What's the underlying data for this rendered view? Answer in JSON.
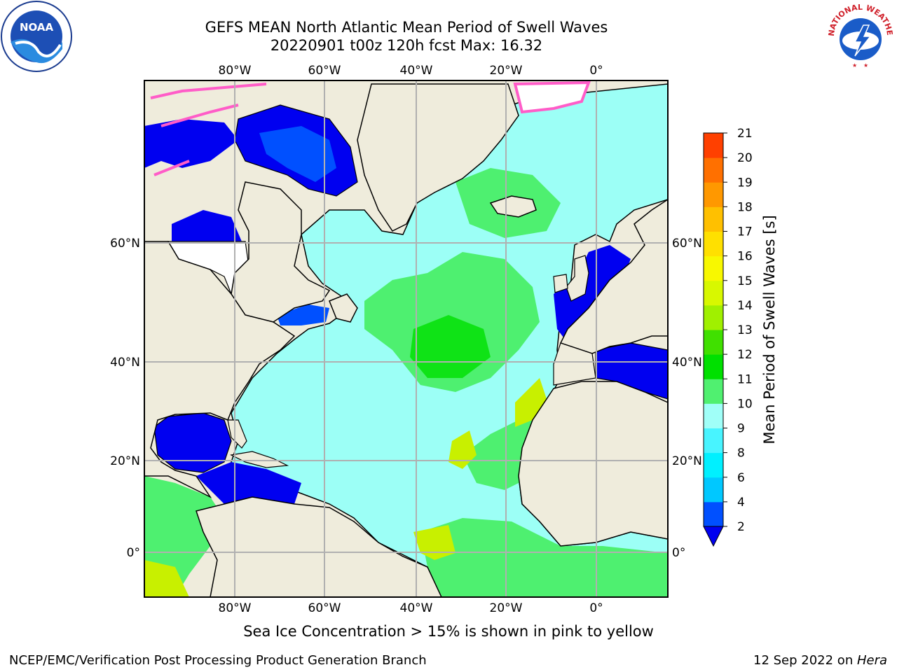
{
  "title": {
    "line1": "GEFS MEAN North Atlantic Mean Period of Swell Waves",
    "line2": "20220901 t00z 120h fcst   Max: 16.32"
  },
  "map": {
    "lon_labels": [
      "80°W",
      "60°W",
      "40°W",
      "20°W",
      "0°"
    ],
    "lat_labels": [
      "60°N",
      "40°N",
      "20°N",
      "0°"
    ]
  },
  "colorbar": {
    "label": "Mean Period of Swell Waves [s]",
    "ticks": [
      "2",
      "4",
      "6",
      "8",
      "9",
      "10",
      "11",
      "12",
      "13",
      "14",
      "15",
      "16",
      "17",
      "18",
      "19",
      "20",
      "21"
    ],
    "colors": [
      "#0050ff",
      "#00c8ff",
      "#00f0ff",
      "#48f4ff",
      "#a0fff8",
      "#50f070",
      "#00e000",
      "#40e000",
      "#a0f000",
      "#d8f800",
      "#f8f800",
      "#ffe000",
      "#ffc000",
      "#ff9800",
      "#ff7000",
      "#ff4000",
      "#ff0000"
    ],
    "extend_color": "#0000f0"
  },
  "colors": {
    "land": "#efecdc",
    "ocean_fill": "#9cfff6",
    "grid": "#b0b0b0",
    "coast": "#000000"
  },
  "note": "Sea Ice Concentration > 15% is shown in pink to yellow",
  "footer": {
    "left": "NCEP/EMC/Verification Post Processing Product Generation Branch",
    "right_text": "12 Sep 2022 on ",
    "right_host": "Hera"
  },
  "logos": {
    "left": "noaa-logo",
    "right": "nws-logo",
    "nws_text": "NATIONAL WEATHER SERVICE"
  }
}
